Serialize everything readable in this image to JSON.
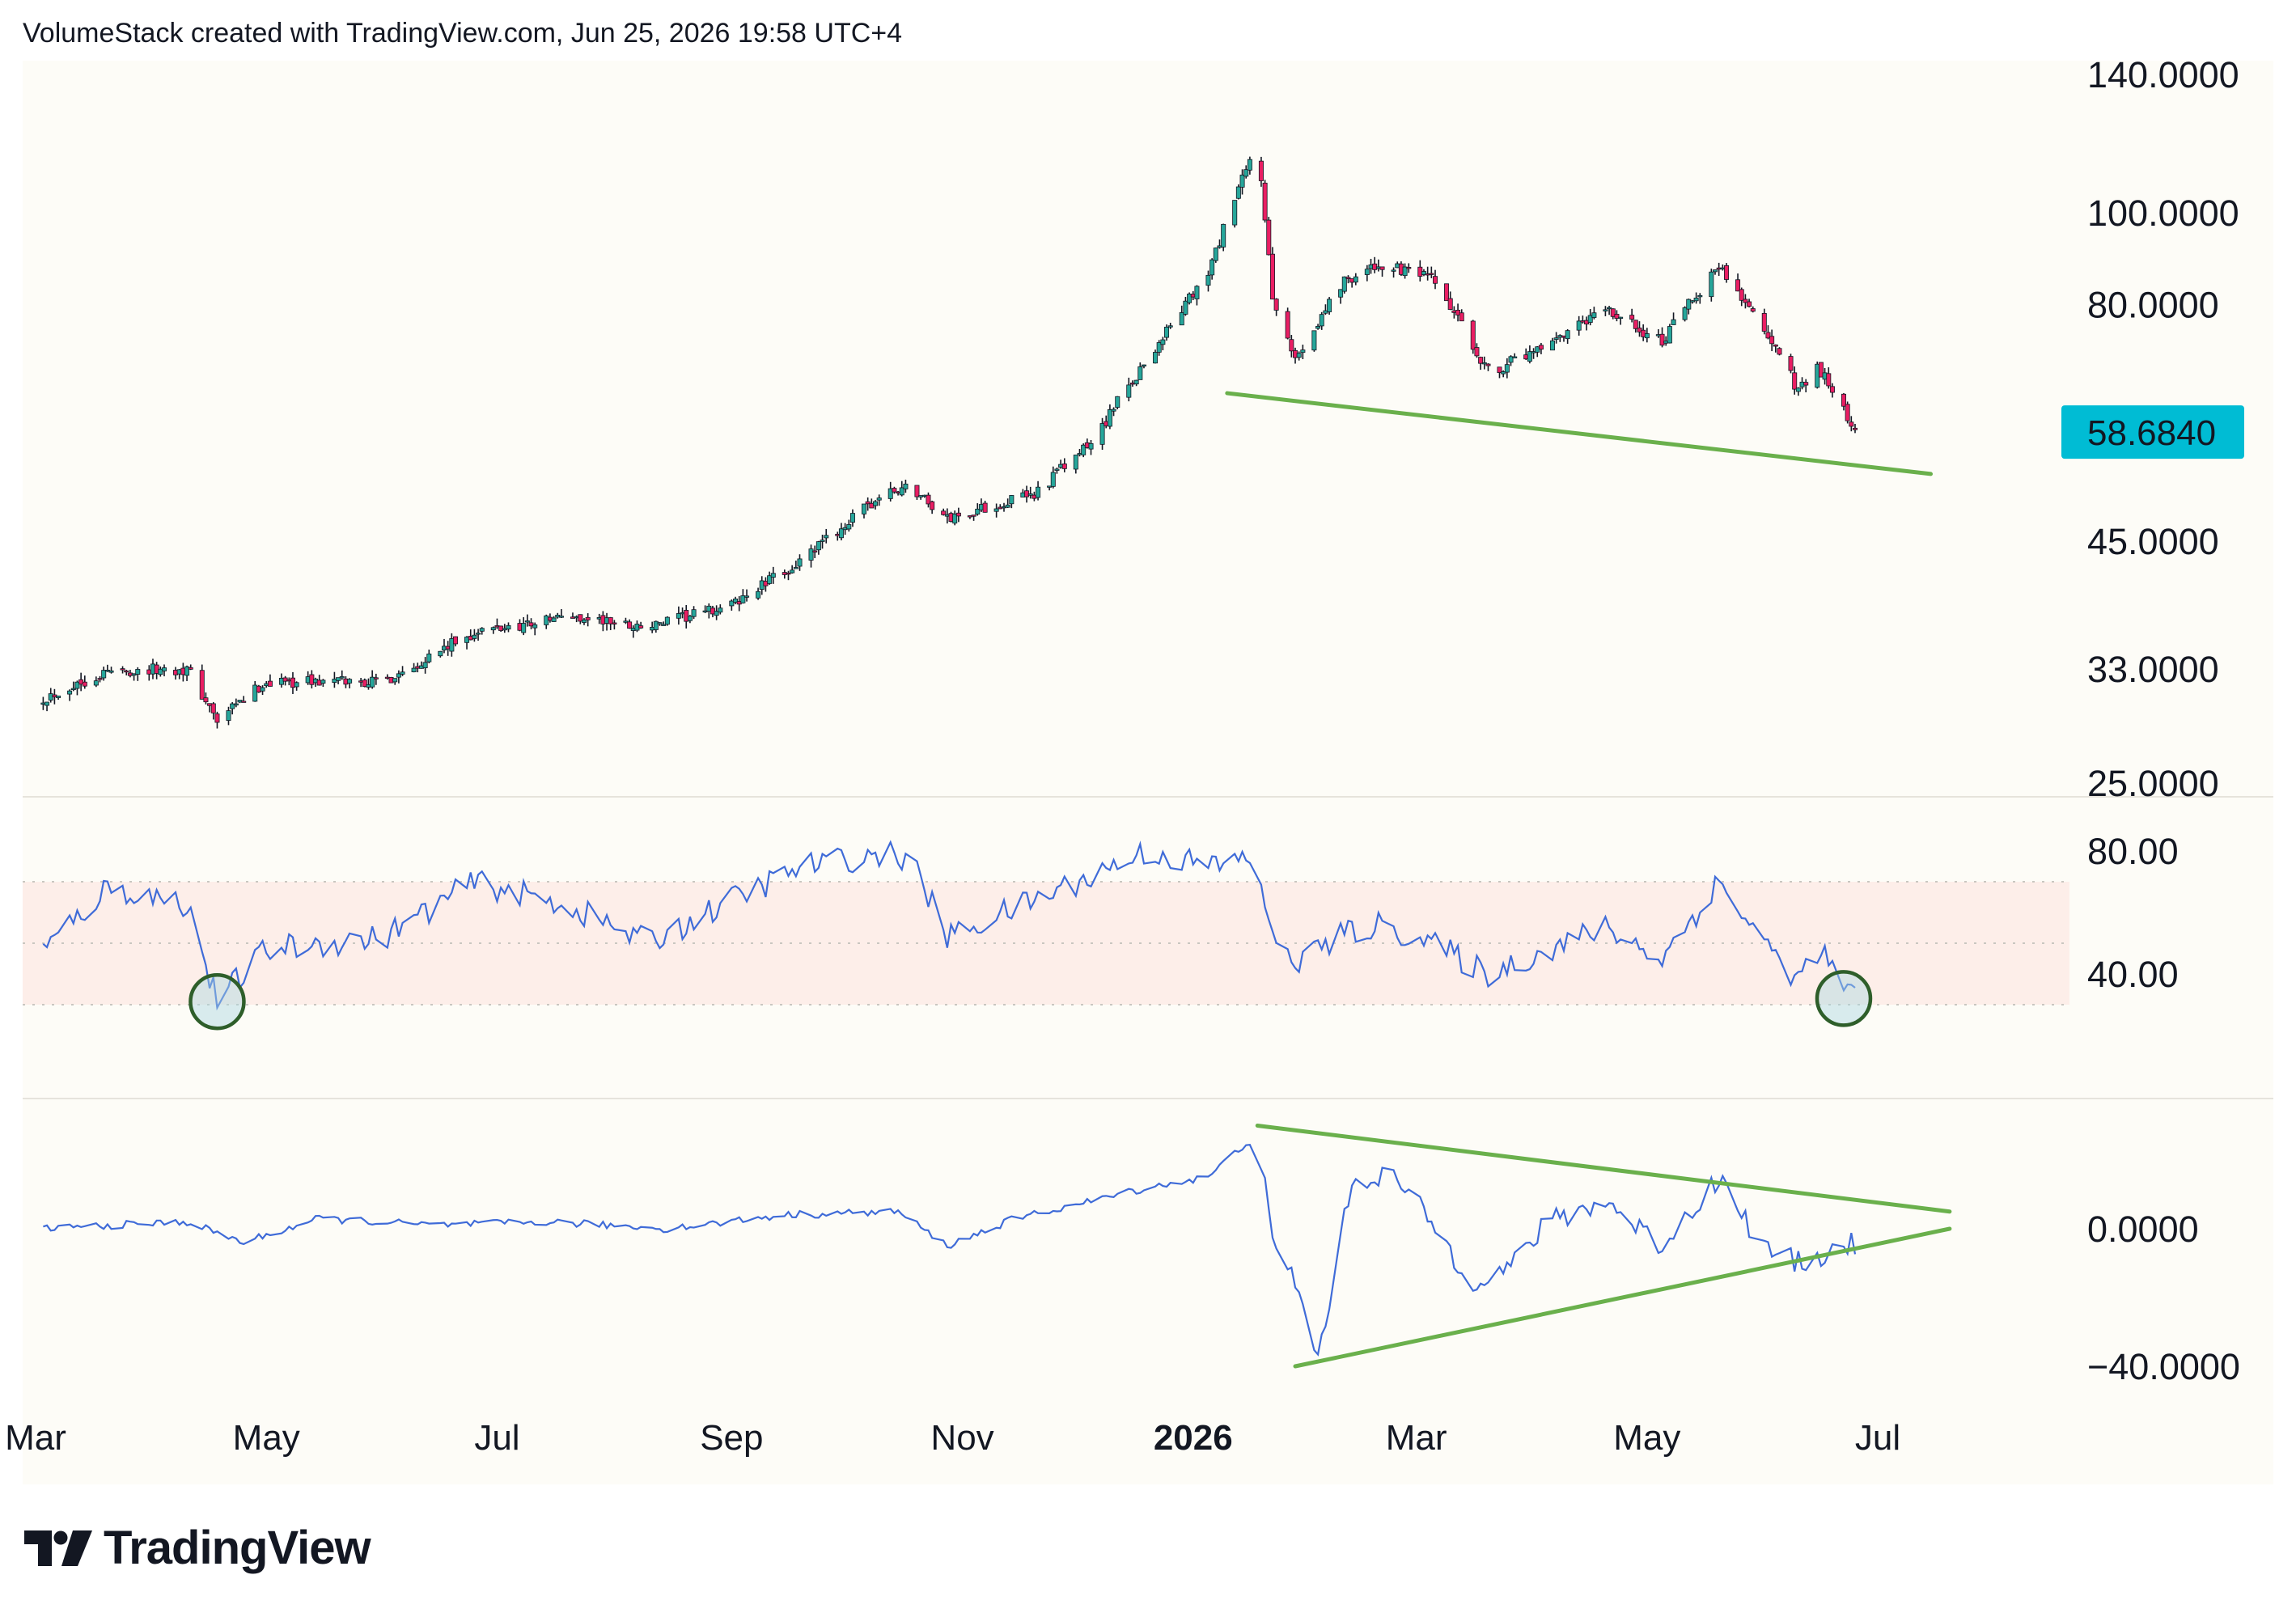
{
  "header": {
    "caption": "VolumeStack created with TradingView.com, Jun 25, 2026 19:58 UTC+4"
  },
  "brand": {
    "name": "TradingView"
  },
  "colors": {
    "up": "#26a69a",
    "down": "#e91e63",
    "line": "#3f6bd8",
    "trend": "#6ab04c",
    "badge": "#00bcd4",
    "background": "#fdfcf7",
    "rsi_band": "#fdeee9"
  },
  "chart_data": [
    {
      "type": "candlestick",
      "panel": "price",
      "y_scale": "log",
      "y_ticks": [
        "140.0000",
        "100.0000",
        "80.0000",
        "58.6840",
        "45.0000",
        "33.0000",
        "25.0000"
      ],
      "last_price": "58.6840",
      "x_ticks": [
        "Mar",
        "May",
        "Jul",
        "Sep",
        "Nov",
        "2026",
        "Mar",
        "May",
        "Jul"
      ],
      "x_months": [
        "2025-03",
        "2025-05",
        "2025-07",
        "2025-09",
        "2025-11",
        "2026-01",
        "2026-03",
        "2026-05",
        "2026-07"
      ],
      "close_path": [
        [
          "2025-03-01",
          30.5
        ],
        [
          "2025-03-20",
          32.8
        ],
        [
          "2025-04-10",
          33.0
        ],
        [
          "2025-04-18",
          29.0
        ],
        [
          "2025-05-01",
          32.0
        ],
        [
          "2025-06-01",
          32.0
        ],
        [
          "2025-06-25",
          36.0
        ],
        [
          "2025-07-20",
          37.5
        ],
        [
          "2025-08-10",
          36.5
        ],
        [
          "2025-09-01",
          38.5
        ],
        [
          "2025-09-20",
          43.0
        ],
        [
          "2025-10-10",
          50.0
        ],
        [
          "2025-10-18",
          51.5
        ],
        [
          "2025-10-28",
          47.5
        ],
        [
          "2025-11-20",
          50.5
        ],
        [
          "2025-12-05",
          57.0
        ],
        [
          "2025-12-20",
          70.0
        ],
        [
          "2026-01-05",
          86.0
        ],
        [
          "2026-01-18",
          118.0
        ],
        [
          "2026-01-22",
          80.0
        ],
        [
          "2026-01-28",
          70.0
        ],
        [
          "2026-02-10",
          85.0
        ],
        [
          "2026-02-20",
          88.0
        ],
        [
          "2026-03-05",
          85.0
        ],
        [
          "2026-03-20",
          68.0
        ],
        [
          "2026-04-05",
          72.0
        ],
        [
          "2026-04-20",
          79.0
        ],
        [
          "2026-05-05",
          73.0
        ],
        [
          "2026-05-20",
          88.0
        ],
        [
          "2026-06-01",
          75.0
        ],
        [
          "2026-06-10",
          65.0
        ],
        [
          "2026-06-15",
          69.0
        ],
        [
          "2026-06-25",
          58.7
        ]
      ],
      "trendline": {
        "from": [
          "2026-01-10",
          64.5
        ],
        "to": [
          "2026-07-15",
          53.0
        ]
      }
    },
    {
      "type": "line",
      "panel": "rsi",
      "y_ticks": [
        "80.00",
        "40.00"
      ],
      "band": [
        30,
        70
      ],
      "mid": 50,
      "path": [
        [
          "2025-03-01",
          45
        ],
        [
          "2025-03-20",
          68
        ],
        [
          "2025-04-10",
          63
        ],
        [
          "2025-04-18",
          31
        ],
        [
          "2025-05-01",
          48
        ],
        [
          "2025-06-01",
          52
        ],
        [
          "2025-06-25",
          70
        ],
        [
          "2025-07-20",
          62
        ],
        [
          "2025-08-10",
          50
        ],
        [
          "2025-09-01",
          64
        ],
        [
          "2025-09-20",
          75
        ],
        [
          "2025-10-10",
          79
        ],
        [
          "2025-10-18",
          78
        ],
        [
          "2025-10-28",
          52
        ],
        [
          "2025-11-20",
          64
        ],
        [
          "2025-12-05",
          72
        ],
        [
          "2025-12-20",
          80
        ],
        [
          "2026-01-05",
          75
        ],
        [
          "2026-01-18",
          78
        ],
        [
          "2026-01-22",
          50
        ],
        [
          "2026-01-28",
          44
        ],
        [
          "2026-02-10",
          53
        ],
        [
          "2026-02-20",
          56
        ],
        [
          "2026-03-05",
          50
        ],
        [
          "2026-03-20",
          40
        ],
        [
          "2026-04-05",
          48
        ],
        [
          "2026-04-20",
          55
        ],
        [
          "2026-05-05",
          45
        ],
        [
          "2026-05-20",
          70
        ],
        [
          "2026-06-01",
          50
        ],
        [
          "2026-06-10",
          38
        ],
        [
          "2026-06-15",
          48
        ],
        [
          "2026-06-25",
          32
        ]
      ],
      "circles": [
        [
          "2025-04-18",
          31
        ],
        [
          "2026-06-22",
          32
        ]
      ]
    },
    {
      "type": "line",
      "panel": "oscillator",
      "y_ticks": [
        "0.0000",
        "−40.0000"
      ],
      "path": [
        [
          "2025-03-01",
          0
        ],
        [
          "2025-04-10",
          2
        ],
        [
          "2025-04-25",
          -4
        ],
        [
          "2025-05-15",
          3
        ],
        [
          "2025-06-15",
          1
        ],
        [
          "2025-07-15",
          2
        ],
        [
          "2025-08-15",
          0
        ],
        [
          "2025-09-15",
          4
        ],
        [
          "2025-10-15",
          5
        ],
        [
          "2025-10-28",
          -5
        ],
        [
          "2025-11-15",
          3
        ],
        [
          "2025-12-05",
          8
        ],
        [
          "2025-12-20",
          12
        ],
        [
          "2026-01-05",
          15
        ],
        [
          "2026-01-18",
          28
        ],
        [
          "2026-01-22",
          -5
        ],
        [
          "2026-01-28",
          -15
        ],
        [
          "2026-02-03",
          -38
        ],
        [
          "2026-02-12",
          14
        ],
        [
          "2026-02-22",
          16
        ],
        [
          "2026-03-05",
          2
        ],
        [
          "2026-03-15",
          -15
        ],
        [
          "2026-03-25",
          -12
        ],
        [
          "2026-04-05",
          2
        ],
        [
          "2026-04-20",
          8
        ],
        [
          "2026-05-05",
          -5
        ],
        [
          "2026-05-20",
          15
        ],
        [
          "2026-06-01",
          -6
        ],
        [
          "2026-06-10",
          -10
        ],
        [
          "2026-06-25",
          -4
        ]
      ],
      "trendline_upper": {
        "from": [
          "2026-01-18",
          30
        ],
        "to": [
          "2026-07-20",
          5
        ]
      },
      "trendline_lower": {
        "from": [
          "2026-01-28",
          -40
        ],
        "to": [
          "2026-07-20",
          0
        ]
      }
    }
  ]
}
